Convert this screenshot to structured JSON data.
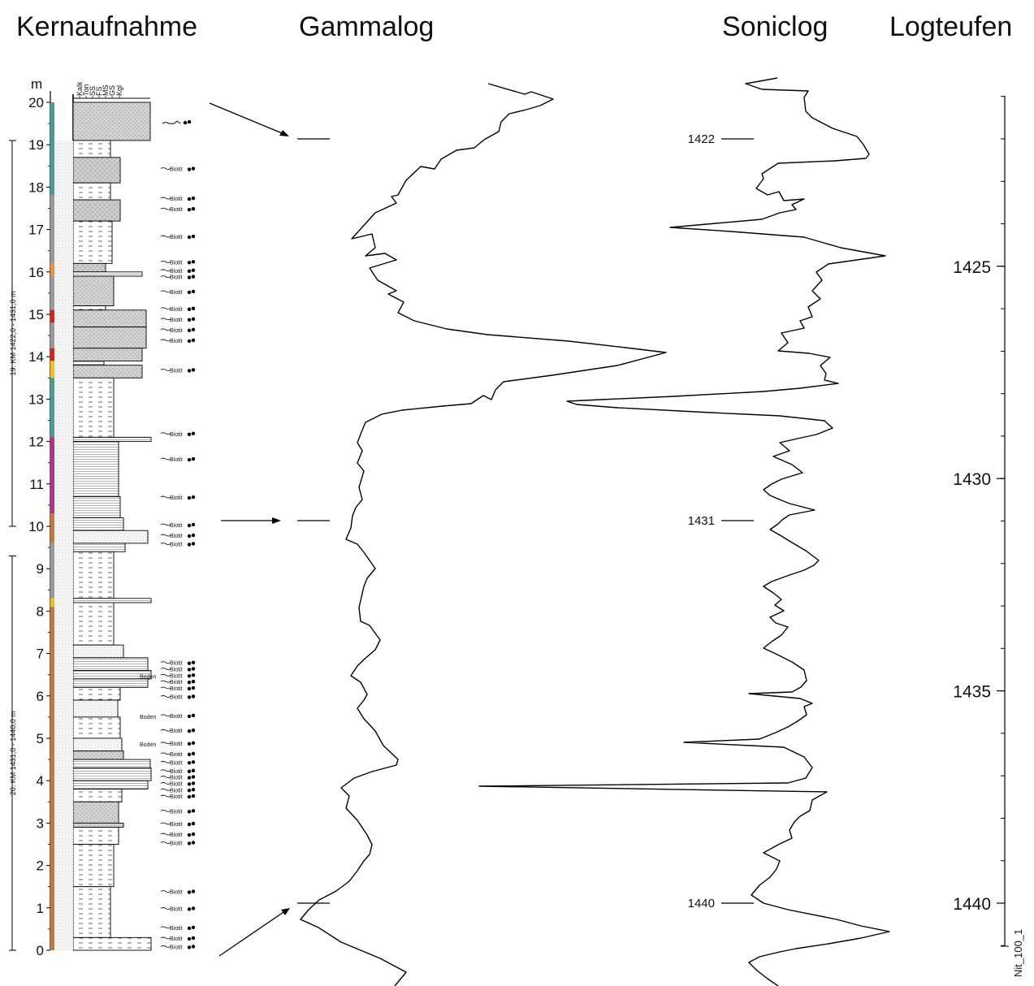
{
  "titles": {
    "core": "Kernaufnahme",
    "gamma": "Gammalog",
    "sonic": "Soniclog",
    "logdepth": "Logteufen"
  },
  "core": {
    "unit_label": "m",
    "scale_ticks": [
      "0",
      "1",
      "2",
      "3",
      "4",
      "5",
      "6",
      "7",
      "8",
      "9",
      "10",
      "11",
      "12",
      "13",
      "14",
      "15",
      "16",
      "17",
      "18",
      "19",
      "20"
    ],
    "grain_headers": [
      "Kalk",
      "Ton",
      "SS",
      "FS",
      "MS",
      "GS",
      "Kgl"
    ],
    "core_runs": [
      {
        "label": "19. KM 1422,0 - 1431,0 m",
        "from_m": 10.0,
        "to_m": 19.1
      },
      {
        "label": "20. KM 1431,0 - 1440,0 m",
        "from_m": 0.0,
        "to_m": 9.3
      }
    ],
    "annotations": [
      {
        "text": "Biotit",
        "m": 18.4
      },
      {
        "text": "Biotit",
        "m": 17.7
      },
      {
        "text": "Biotit",
        "m": 17.45
      },
      {
        "text": "Biotit",
        "m": 16.8
      },
      {
        "text": "Biotit",
        "m": 16.2
      },
      {
        "text": "Biotit",
        "m": 16.0
      },
      {
        "text": "Biotit",
        "m": 15.85
      },
      {
        "text": "Biotit",
        "m": 15.5
      },
      {
        "text": "Biotit",
        "m": 15.1
      },
      {
        "text": "Biotit",
        "m": 14.85
      },
      {
        "text": "Biotit",
        "m": 14.6
      },
      {
        "text": "Biotit",
        "m": 14.35
      },
      {
        "text": "Biotit",
        "m": 13.65
      },
      {
        "text": "Biotit",
        "m": 12.15
      },
      {
        "text": "Biotit",
        "m": 11.55
      },
      {
        "text": "Biotit",
        "m": 10.65
      },
      {
        "text": "Biotit",
        "m": 10.0
      },
      {
        "text": "Biotit",
        "m": 9.75
      },
      {
        "text": "Biotit",
        "m": 9.55
      },
      {
        "text": "Biotit",
        "m": 6.75
      },
      {
        "text": "Biotit",
        "m": 6.6
      },
      {
        "text": "Biotit",
        "m": 6.45
      },
      {
        "text": "Biotit",
        "m": 6.3
      },
      {
        "text": "Biotit",
        "m": 6.15
      },
      {
        "text": "Biotit",
        "m": 5.95
      },
      {
        "text": "Biotit",
        "m": 5.5
      },
      {
        "text": "Biotit",
        "m": 5.15
      },
      {
        "text": "Biotit",
        "m": 4.85
      },
      {
        "text": "Biotit",
        "m": 4.6
      },
      {
        "text": "Biotit",
        "m": 4.4
      },
      {
        "text": "Biotit",
        "m": 4.2
      },
      {
        "text": "Biotit",
        "m": 4.05
      },
      {
        "text": "Biotit",
        "m": 3.9
      },
      {
        "text": "Biotit",
        "m": 3.75
      },
      {
        "text": "Biotit",
        "m": 3.6
      },
      {
        "text": "Biotit",
        "m": 3.25
      },
      {
        "text": "Biotit",
        "m": 2.95
      },
      {
        "text": "Biotit",
        "m": 2.7
      },
      {
        "text": "Biotit",
        "m": 2.5
      },
      {
        "text": "Biotit",
        "m": 1.35
      },
      {
        "text": "Biotit",
        "m": 0.95
      },
      {
        "text": "Biotit",
        "m": 0.5
      },
      {
        "text": "Biotit",
        "m": 0.25
      },
      {
        "text": "Biotit",
        "m": 0.05
      }
    ],
    "boden_labels": [
      {
        "text": "Boden",
        "m": 6.45
      },
      {
        "text": "Boden",
        "m": 5.5
      },
      {
        "text": "Boden",
        "m": 4.85
      }
    ]
  },
  "gamma_markers": [
    "1422",
    "1431",
    "1440"
  ],
  "log_depths": [
    "1425",
    "1430",
    "1435",
    "1440"
  ],
  "figure_id": "Nit_100_1",
  "colors": {
    "line": "#000000",
    "core_teal": "#4a9a98",
    "core_gray": "#9a9a9a",
    "core_orange": "#e8943c",
    "core_red": "#d8201c",
    "core_yellow": "#f2c01e",
    "core_magenta": "#b0348c",
    "core_brown": "#c47a3a"
  }
}
